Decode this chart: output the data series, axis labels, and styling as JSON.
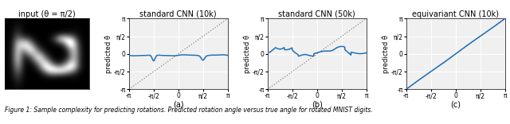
{
  "title_10k": "standard CNN (10k)",
  "title_50k": "standard CNN (50k)",
  "title_eq": "equivariant CNN (10k)",
  "input_title": "input (θ = π/2)",
  "ylabel": "predicted θ̂",
  "xlabel_a": "(a)",
  "xlabel_b": "(b)",
  "xlabel_c": "(c)",
  "caption": "Figure 1: Sample complexity for predicting rotations. Predicted rotation angle versus true angle for rotated MNIST digits.",
  "pi": 3.14159265358979,
  "line_color": "#1f6fba",
  "grid_color": "#cccccc",
  "tick_labels": [
    "-π",
    "-π/2",
    "0",
    "π/2",
    "π"
  ],
  "tick_values": [
    -3.14159265,
    -1.5707963,
    0,
    1.5707963,
    3.14159265
  ]
}
